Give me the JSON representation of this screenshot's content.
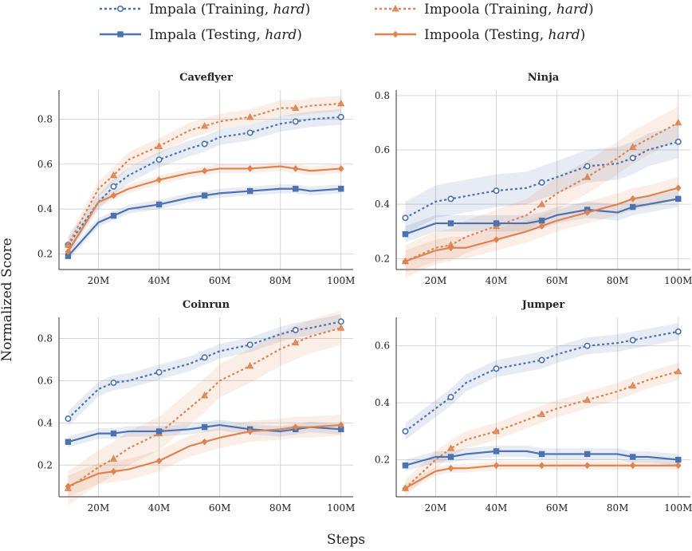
{
  "figure": {
    "xlabel": "Steps",
    "ylabel": "Normalized Score"
  },
  "legend": [
    {
      "prefix": "Impala (Training, ",
      "emph": "hard",
      "suffix": ")",
      "series": "impala_train"
    },
    {
      "prefix": "Impoola (Training, ",
      "emph": "hard",
      "suffix": ")",
      "series": "impoola_train"
    },
    {
      "prefix": "Impala (Testing, ",
      "emph": "hard",
      "suffix": ")",
      "series": "impala_test"
    },
    {
      "prefix": "Impoola (Testing, ",
      "emph": "hard",
      "suffix": ")",
      "series": "impoola_test"
    }
  ],
  "colors": {
    "impala": "#4c72b0",
    "impoola": "#dd8452"
  },
  "chart_data": [
    {
      "type": "line",
      "title": "Caveflyer",
      "xlabel": "",
      "ylabel": "",
      "xlim": [
        7,
        104
      ],
      "ylim": [
        0.13,
        0.93
      ],
      "xticks": [
        20,
        40,
        60,
        80,
        100
      ],
      "xtick_labels": [
        "20M",
        "40M",
        "60M",
        "80M",
        "100M"
      ],
      "yticks": [
        0.2,
        0.4,
        0.6,
        0.8
      ],
      "ytick_labels": [
        "0.2",
        "0.4",
        "0.6",
        "0.8"
      ],
      "series": [
        {
          "name": "Impala (Training, hard)",
          "key": "impala_train",
          "x": [
            10,
            20,
            25,
            30,
            40,
            50,
            55,
            60,
            70,
            80,
            85,
            90,
            100
          ],
          "values": [
            0.24,
            0.43,
            0.5,
            0.55,
            0.62,
            0.67,
            0.69,
            0.72,
            0.74,
            0.78,
            0.79,
            0.8,
            0.81
          ],
          "band": 0.035,
          "markers_at": [
            10,
            25,
            40,
            55,
            70,
            85,
            100
          ]
        },
        {
          "name": "Impoola (Training, hard)",
          "key": "impoola_train",
          "x": [
            10,
            20,
            25,
            30,
            40,
            50,
            55,
            60,
            70,
            80,
            85,
            90,
            100
          ],
          "values": [
            0.24,
            0.49,
            0.55,
            0.62,
            0.68,
            0.75,
            0.77,
            0.79,
            0.81,
            0.85,
            0.85,
            0.86,
            0.87
          ],
          "band": 0.035,
          "markers_at": [
            10,
            25,
            40,
            55,
            70,
            85,
            100
          ]
        },
        {
          "name": "Impala (Testing, hard)",
          "key": "impala_test",
          "x": [
            10,
            20,
            25,
            30,
            40,
            50,
            55,
            60,
            70,
            80,
            85,
            90,
            100
          ],
          "values": [
            0.19,
            0.34,
            0.37,
            0.4,
            0.42,
            0.45,
            0.46,
            0.47,
            0.48,
            0.49,
            0.49,
            0.48,
            0.49
          ],
          "band": 0.02,
          "markers_at": [
            10,
            25,
            40,
            55,
            70,
            85,
            100
          ]
        },
        {
          "name": "Impoola (Testing, hard)",
          "key": "impoola_test",
          "x": [
            10,
            20,
            25,
            30,
            40,
            50,
            55,
            60,
            70,
            80,
            85,
            90,
            100
          ],
          "values": [
            0.21,
            0.43,
            0.46,
            0.49,
            0.53,
            0.56,
            0.57,
            0.58,
            0.58,
            0.59,
            0.58,
            0.57,
            0.58
          ],
          "band": 0.02,
          "markers_at": [
            10,
            25,
            40,
            55,
            70,
            85,
            100
          ]
        }
      ]
    },
    {
      "type": "line",
      "title": "Ninja",
      "xlabel": "",
      "ylabel": "",
      "xlim": [
        7,
        104
      ],
      "ylim": [
        0.16,
        0.82
      ],
      "xticks": [
        20,
        40,
        60,
        80,
        100
      ],
      "xtick_labels": [
        "20M",
        "40M",
        "60M",
        "80M",
        "100M"
      ],
      "yticks": [
        0.2,
        0.4,
        0.6,
        0.8
      ],
      "ytick_labels": [
        "0.2",
        "0.4",
        "0.6",
        "0.8"
      ],
      "series": [
        {
          "name": "Impala (Training, hard)",
          "key": "impala_train",
          "x": [
            10,
            20,
            25,
            30,
            40,
            50,
            55,
            60,
            70,
            80,
            85,
            90,
            100
          ],
          "values": [
            0.35,
            0.41,
            0.42,
            0.43,
            0.45,
            0.46,
            0.48,
            0.5,
            0.54,
            0.55,
            0.57,
            0.6,
            0.63
          ],
          "band": 0.06,
          "markers_at": [
            10,
            25,
            40,
            55,
            70,
            85,
            100
          ]
        },
        {
          "name": "Impoola (Training, hard)",
          "key": "impoola_train",
          "x": [
            10,
            20,
            25,
            30,
            40,
            50,
            55,
            60,
            70,
            80,
            85,
            90,
            100
          ],
          "values": [
            0.19,
            0.24,
            0.25,
            0.28,
            0.32,
            0.36,
            0.4,
            0.44,
            0.5,
            0.57,
            0.61,
            0.64,
            0.7
          ],
          "band": 0.06,
          "markers_at": [
            10,
            25,
            40,
            55,
            70,
            85,
            100
          ]
        },
        {
          "name": "Impala (Testing, hard)",
          "key": "impala_test",
          "x": [
            10,
            20,
            25,
            30,
            40,
            50,
            55,
            60,
            70,
            80,
            85,
            90,
            100
          ],
          "values": [
            0.29,
            0.33,
            0.33,
            0.33,
            0.33,
            0.33,
            0.34,
            0.36,
            0.38,
            0.37,
            0.39,
            0.4,
            0.42
          ],
          "band": 0.03,
          "markers_at": [
            10,
            25,
            40,
            55,
            70,
            85,
            100
          ]
        },
        {
          "name": "Impoola (Testing, hard)",
          "key": "impoola_test",
          "x": [
            10,
            20,
            25,
            30,
            40,
            50,
            55,
            60,
            70,
            80,
            85,
            90,
            100
          ],
          "values": [
            0.19,
            0.23,
            0.24,
            0.24,
            0.27,
            0.3,
            0.32,
            0.34,
            0.37,
            0.4,
            0.42,
            0.43,
            0.46
          ],
          "band": 0.04,
          "markers_at": [
            10,
            25,
            40,
            55,
            70,
            85,
            100
          ]
        }
      ]
    },
    {
      "type": "line",
      "title": "Coinrun",
      "xlabel": "",
      "ylabel": "",
      "xlim": [
        7,
        104
      ],
      "ylim": [
        0.05,
        0.9
      ],
      "xticks": [
        20,
        40,
        60,
        80,
        100
      ],
      "xtick_labels": [
        "20M",
        "40M",
        "60M",
        "80M",
        "100M"
      ],
      "yticks": [
        0.2,
        0.4,
        0.6,
        0.8
      ],
      "ytick_labels": [
        "0.2",
        "0.4",
        "0.6",
        "0.8"
      ],
      "series": [
        {
          "name": "Impala (Training, hard)",
          "key": "impala_train",
          "x": [
            10,
            20,
            25,
            30,
            40,
            50,
            55,
            60,
            70,
            80,
            85,
            90,
            100
          ],
          "values": [
            0.42,
            0.56,
            0.59,
            0.6,
            0.64,
            0.68,
            0.71,
            0.74,
            0.77,
            0.82,
            0.84,
            0.85,
            0.88
          ],
          "band": 0.035,
          "markers_at": [
            10,
            25,
            40,
            55,
            70,
            85,
            100
          ]
        },
        {
          "name": "Impoola (Training, hard)",
          "key": "impoola_train",
          "x": [
            10,
            20,
            25,
            30,
            40,
            50,
            55,
            60,
            70,
            80,
            85,
            90,
            100
          ],
          "values": [
            0.09,
            0.19,
            0.23,
            0.28,
            0.35,
            0.47,
            0.53,
            0.6,
            0.67,
            0.75,
            0.78,
            0.81,
            0.85
          ],
          "band": 0.08,
          "markers_at": [
            10,
            25,
            40,
            55,
            70,
            85,
            100
          ]
        },
        {
          "name": "Impala (Testing, hard)",
          "key": "impala_test",
          "x": [
            10,
            20,
            25,
            30,
            40,
            50,
            55,
            60,
            70,
            80,
            85,
            90,
            100
          ],
          "values": [
            0.31,
            0.35,
            0.35,
            0.36,
            0.36,
            0.37,
            0.38,
            0.39,
            0.37,
            0.36,
            0.37,
            0.38,
            0.37
          ],
          "band": 0.025,
          "markers_at": [
            10,
            25,
            40,
            55,
            70,
            85,
            100
          ]
        },
        {
          "name": "Impoola (Testing, hard)",
          "key": "impoola_test",
          "x": [
            10,
            20,
            25,
            30,
            40,
            50,
            55,
            60,
            70,
            80,
            85,
            90,
            100
          ],
          "values": [
            0.1,
            0.16,
            0.17,
            0.18,
            0.22,
            0.29,
            0.31,
            0.33,
            0.36,
            0.37,
            0.38,
            0.38,
            0.39
          ],
          "band": 0.05,
          "markers_at": [
            10,
            25,
            40,
            55,
            70,
            85,
            100
          ]
        }
      ]
    },
    {
      "type": "line",
      "title": "Jumper",
      "xlabel": "",
      "ylabel": "",
      "xlim": [
        7,
        104
      ],
      "ylim": [
        0.07,
        0.7
      ],
      "xticks": [
        20,
        40,
        60,
        80,
        100
      ],
      "xtick_labels": [
        "20M",
        "40M",
        "60M",
        "80M",
        "100M"
      ],
      "yticks": [
        0.2,
        0.4,
        0.6
      ],
      "ytick_labels": [
        "0.2",
        "0.4",
        "0.6"
      ],
      "series": [
        {
          "name": "Impala (Training, hard)",
          "key": "impala_train",
          "x": [
            10,
            20,
            25,
            30,
            40,
            50,
            55,
            60,
            70,
            80,
            85,
            90,
            100
          ],
          "values": [
            0.3,
            0.38,
            0.42,
            0.47,
            0.52,
            0.54,
            0.55,
            0.57,
            0.6,
            0.61,
            0.62,
            0.63,
            0.65
          ],
          "band": 0.03,
          "markers_at": [
            10,
            25,
            40,
            55,
            70,
            85,
            100
          ]
        },
        {
          "name": "Impoola (Training, hard)",
          "key": "impoola_train",
          "x": [
            10,
            20,
            25,
            30,
            40,
            50,
            55,
            60,
            70,
            80,
            85,
            90,
            100
          ],
          "values": [
            0.1,
            0.2,
            0.24,
            0.27,
            0.3,
            0.34,
            0.36,
            0.38,
            0.41,
            0.44,
            0.46,
            0.48,
            0.51
          ],
          "band": 0.03,
          "markers_at": [
            10,
            25,
            40,
            55,
            70,
            85,
            100
          ]
        },
        {
          "name": "Impala (Testing, hard)",
          "key": "impala_test",
          "x": [
            10,
            20,
            25,
            30,
            40,
            50,
            55,
            60,
            70,
            80,
            85,
            90,
            100
          ],
          "values": [
            0.18,
            0.21,
            0.21,
            0.22,
            0.23,
            0.23,
            0.22,
            0.22,
            0.22,
            0.22,
            0.21,
            0.21,
            0.2
          ],
          "band": 0.02,
          "markers_at": [
            10,
            25,
            40,
            55,
            70,
            85,
            100
          ]
        },
        {
          "name": "Impoola (Testing, hard)",
          "key": "impoola_test",
          "x": [
            10,
            20,
            25,
            30,
            40,
            50,
            55,
            60,
            70,
            80,
            85,
            90,
            100
          ],
          "values": [
            0.1,
            0.16,
            0.17,
            0.17,
            0.18,
            0.18,
            0.18,
            0.18,
            0.18,
            0.18,
            0.18,
            0.18,
            0.18
          ],
          "band": 0.015,
          "markers_at": [
            10,
            25,
            40,
            55,
            70,
            85,
            100
          ]
        }
      ]
    }
  ]
}
